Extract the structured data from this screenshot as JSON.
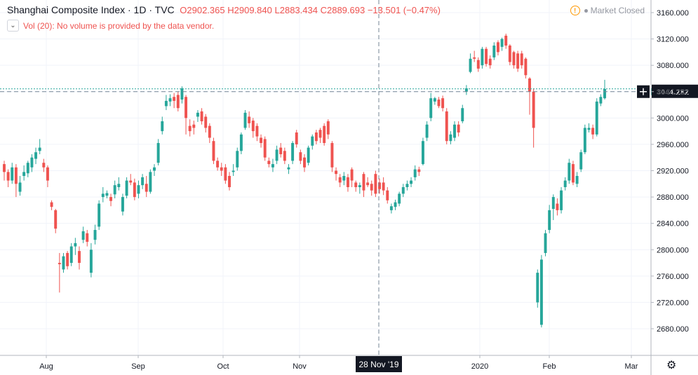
{
  "legend": {
    "symbol": "Shanghai Composite Index · 1D · TVC",
    "open_label": "O",
    "open": "2902.365",
    "high_label": "H",
    "high": "2909.840",
    "low_label": "L",
    "low": "2883.434",
    "close_label": "C",
    "close": "2889.693",
    "change": "−13.501 (−0.47%)",
    "volume_note": "Vol (20): No volume is provided by the data vendor."
  },
  "market_status": "Market Closed",
  "crosshair_date": "28 Nov '19",
  "colors": {
    "up": "#26a69a",
    "down": "#ef5350",
    "grid": "#f0f3fa",
    "crosshair": "#758696"
  },
  "chart_data": {
    "type": "candlestick",
    "title": "Shanghai Composite Index",
    "interval": "1D",
    "source": "TVC",
    "ylim": [
      2640,
      3170
    ],
    "y_ticks": [
      2680,
      2720,
      2760,
      2800,
      2840,
      2880,
      2920,
      2960,
      3000,
      3040,
      3080,
      3120,
      3160
    ],
    "y_tick_labels": [
      "2680.000",
      "2720.000",
      "2760.000",
      "2800.000",
      "2840.000",
      "2880.000",
      "2920.000",
      "2960.000",
      "3000.000",
      "3040.000",
      "3080.000",
      "3120.000",
      "3160.000"
    ],
    "x_tick_labels": [
      "Aug",
      "Sep",
      "Oct",
      "Nov",
      "2020",
      "Feb",
      "Mar"
    ],
    "last_price": 3044.282,
    "last_price_label": "3044.282",
    "crosshair_price": 3040,
    "candles": [
      [
        2930,
        2918,
        2935,
        2905
      ],
      [
        2918,
        2905,
        2922,
        2895
      ],
      [
        2905,
        2925,
        2932,
        2900
      ],
      [
        2925,
        2900,
        2930,
        2880
      ],
      [
        2888,
        2902,
        2912,
        2882
      ],
      [
        2912,
        2918,
        2928,
        2905
      ],
      [
        2916,
        2932,
        2935,
        2910
      ],
      [
        2925,
        2940,
        2945,
        2918
      ],
      [
        2938,
        2948,
        2955,
        2930
      ],
      [
        2950,
        2955,
        2968,
        2945
      ],
      [
        2932,
        2925,
        2938,
        2918
      ],
      [
        2925,
        2905,
        2928,
        2895
      ],
      [
        2872,
        2865,
        2875,
        2860
      ],
      [
        2860,
        2832,
        2862,
        2825
      ],
      [
        2780,
        2778,
        2795,
        2735
      ],
      [
        2770,
        2790,
        2795,
        2765
      ],
      [
        2795,
        2775,
        2798,
        2770
      ],
      [
        2780,
        2805,
        2810,
        2775
      ],
      [
        2805,
        2810,
        2818,
        2792
      ],
      [
        2798,
        2780,
        2805,
        2770
      ],
      [
        2815,
        2828,
        2835,
        2810
      ],
      [
        2825,
        2812,
        2830,
        2805
      ],
      [
        2765,
        2800,
        2810,
        2758
      ],
      [
        2815,
        2830,
        2838,
        2808
      ],
      [
        2835,
        2870,
        2875,
        2830
      ],
      [
        2880,
        2885,
        2895,
        2872
      ],
      [
        2882,
        2886,
        2890,
        2878
      ],
      [
        2880,
        2874,
        2885,
        2866
      ],
      [
        2884,
        2898,
        2905,
        2878
      ],
      [
        2895,
        2900,
        2910,
        2890
      ],
      [
        2858,
        2880,
        2885,
        2852
      ],
      [
        2882,
        2905,
        2910,
        2878
      ],
      [
        2905,
        2902,
        2915,
        2898
      ],
      [
        2902,
        2880,
        2908,
        2875
      ],
      [
        2885,
        2898,
        2905,
        2878
      ],
      [
        2898,
        2910,
        2915,
        2892
      ],
      [
        2900,
        2888,
        2912,
        2880
      ],
      [
        2888,
        2918,
        2922,
        2885
      ],
      [
        2920,
        2925,
        2930,
        2912
      ],
      [
        2932,
        2962,
        2968,
        2928
      ],
      [
        2980,
        2995,
        3002,
        2975
      ],
      [
        3018,
        3026,
        3035,
        3012
      ],
      [
        3025,
        3030,
        3036,
        3018
      ],
      [
        3032,
        3026,
        3038,
        3015
      ],
      [
        3035,
        3015,
        3040,
        3010
      ],
      [
        3028,
        3045,
        3048,
        3022
      ],
      [
        3032,
        3000,
        3035,
        2975
      ],
      [
        2988,
        2980,
        2998,
        2972
      ],
      [
        2990,
        2985,
        2996,
        2975
      ],
      [
        3002,
        3008,
        3012,
        2994
      ],
      [
        3010,
        2995,
        3015,
        2990
      ],
      [
        3002,
        2985,
        3006,
        2978
      ],
      [
        2988,
        2970,
        2992,
        2962
      ],
      [
        2965,
        2935,
        2970,
        2930
      ],
      [
        2935,
        2925,
        2940,
        2920
      ],
      [
        2925,
        2920,
        2932,
        2912
      ],
      [
        2925,
        2905,
        2930,
        2900
      ],
      [
        2912,
        2895,
        2918,
        2890
      ],
      [
        2918,
        2920,
        2930,
        2912
      ],
      [
        2925,
        2950,
        2955,
        2920
      ],
      [
        2950,
        2975,
        2978,
        2945
      ],
      [
        2985,
        3008,
        3012,
        2982
      ],
      [
        3002,
        2992,
        3010,
        2985
      ],
      [
        2996,
        2980,
        3000,
        2970
      ],
      [
        2988,
        2972,
        2992,
        2965
      ],
      [
        2970,
        2962,
        2975,
        2955
      ],
      [
        2968,
        2940,
        2972,
        2935
      ],
      [
        2935,
        2930,
        2940,
        2925
      ],
      [
        2925,
        2930,
        2938,
        2918
      ],
      [
        2935,
        2952,
        2958,
        2930
      ],
      [
        2955,
        2945,
        2962,
        2940
      ],
      [
        2950,
        2935,
        2955,
        2930
      ],
      [
        2922,
        2925,
        2930,
        2915
      ],
      [
        2935,
        2962,
        2965,
        2930
      ],
      [
        2978,
        2960,
        2982,
        2955
      ],
      [
        2948,
        2935,
        2952,
        2930
      ],
      [
        2940,
        2925,
        2945,
        2918
      ],
      [
        2932,
        2955,
        2958,
        2928
      ],
      [
        2958,
        2972,
        2975,
        2952
      ],
      [
        2978,
        2965,
        2982,
        2960
      ],
      [
        2982,
        2970,
        2985,
        2962
      ],
      [
        2988,
        2962,
        2992,
        2958
      ],
      [
        2995,
        2975,
        2998,
        2968
      ],
      [
        2962,
        2925,
        2965,
        2918
      ],
      [
        2920,
        2915,
        2925,
        2905
      ],
      [
        2910,
        2902,
        2915,
        2895
      ],
      [
        2905,
        2912,
        2918,
        2898
      ],
      [
        2910,
        2895,
        2915,
        2888
      ],
      [
        2922,
        2905,
        2925,
        2895
      ],
      [
        2902,
        2895,
        2905,
        2888
      ],
      [
        2895,
        2898,
        2902,
        2885
      ],
      [
        2915,
        2890,
        2918,
        2880
      ],
      [
        2902,
        2898,
        2910,
        2895
      ],
      [
        2900,
        2890,
        2905,
        2882
      ],
      [
        2915,
        2885,
        2920,
        2880
      ],
      [
        2902,
        2892,
        2908,
        2885
      ],
      [
        2902,
        2890,
        2910,
        2883
      ],
      [
        2890,
        2875,
        2895,
        2870
      ],
      [
        2860,
        2866,
        2870,
        2855
      ],
      [
        2865,
        2872,
        2876,
        2860
      ],
      [
        2870,
        2885,
        2888,
        2866
      ],
      [
        2885,
        2895,
        2900,
        2880
      ],
      [
        2895,
        2900,
        2905,
        2890
      ],
      [
        2900,
        2905,
        2910,
        2895
      ],
      [
        2910,
        2922,
        2928,
        2905
      ],
      [
        2922,
        2918,
        2926,
        2912
      ],
      [
        2930,
        2965,
        2970,
        2928
      ],
      [
        2970,
        2990,
        2995,
        2965
      ],
      [
        3000,
        3030,
        3038,
        2995
      ],
      [
        3025,
        3030,
        3032,
        3020
      ],
      [
        3028,
        3018,
        3032,
        3015
      ],
      [
        3030,
        3015,
        3034,
        3010
      ],
      [
        3010,
        2965,
        3015,
        2960
      ],
      [
        2965,
        2975,
        2980,
        2960
      ],
      [
        2970,
        2990,
        2995,
        2965
      ],
      [
        2990,
        2978,
        2995,
        2972
      ],
      [
        2995,
        3015,
        3020,
        2992
      ],
      [
        3040,
        3045,
        3050,
        3035
      ],
      [
        3070,
        3090,
        3098,
        3068
      ],
      [
        3092,
        3090,
        3102,
        3085
      ],
      [
        3088,
        3075,
        3092,
        3070
      ],
      [
        3080,
        3105,
        3108,
        3075
      ],
      [
        3105,
        3082,
        3108,
        3078
      ],
      [
        3090,
        3080,
        3095,
        3075
      ],
      [
        3092,
        3110,
        3115,
        3088
      ],
      [
        3115,
        3100,
        3118,
        3095
      ],
      [
        3108,
        3120,
        3122,
        3102
      ],
      [
        3125,
        3110,
        3128,
        3105
      ],
      [
        3110,
        3085,
        3112,
        3080
      ],
      [
        3100,
        3080,
        3102,
        3075
      ],
      [
        3098,
        3075,
        3102,
        3070
      ],
      [
        3098,
        3080,
        3102,
        3075
      ],
      [
        3090,
        3065,
        3092,
        3060
      ],
      [
        3060,
        3040,
        3062,
        3005
      ],
      [
        3040,
        2985,
        3045,
        2955
      ],
      [
        2720,
        2765,
        2770,
        2712
      ],
      [
        2686,
        2785,
        2792,
        2682
      ],
      [
        2795,
        2825,
        2830,
        2790
      ],
      [
        2830,
        2860,
        2868,
        2825
      ],
      [
        2862,
        2880,
        2884,
        2845
      ],
      [
        2870,
        2860,
        2878,
        2852
      ],
      [
        2860,
        2890,
        2895,
        2855
      ],
      [
        2895,
        2905,
        2910,
        2890
      ],
      [
        2905,
        2932,
        2938,
        2900
      ],
      [
        2930,
        2902,
        2935,
        2898
      ],
      [
        2900,
        2912,
        2918,
        2895
      ],
      [
        2922,
        2948,
        2952,
        2918
      ],
      [
        2948,
        2985,
        2990,
        2945
      ],
      [
        2982,
        2985,
        2992,
        2978
      ],
      [
        2985,
        2975,
        2990,
        2968
      ],
      [
        2975,
        3025,
        3030,
        2972
      ],
      [
        3022,
        3032,
        3036,
        3018
      ],
      [
        3030,
        3044,
        3058,
        3028
      ]
    ]
  }
}
